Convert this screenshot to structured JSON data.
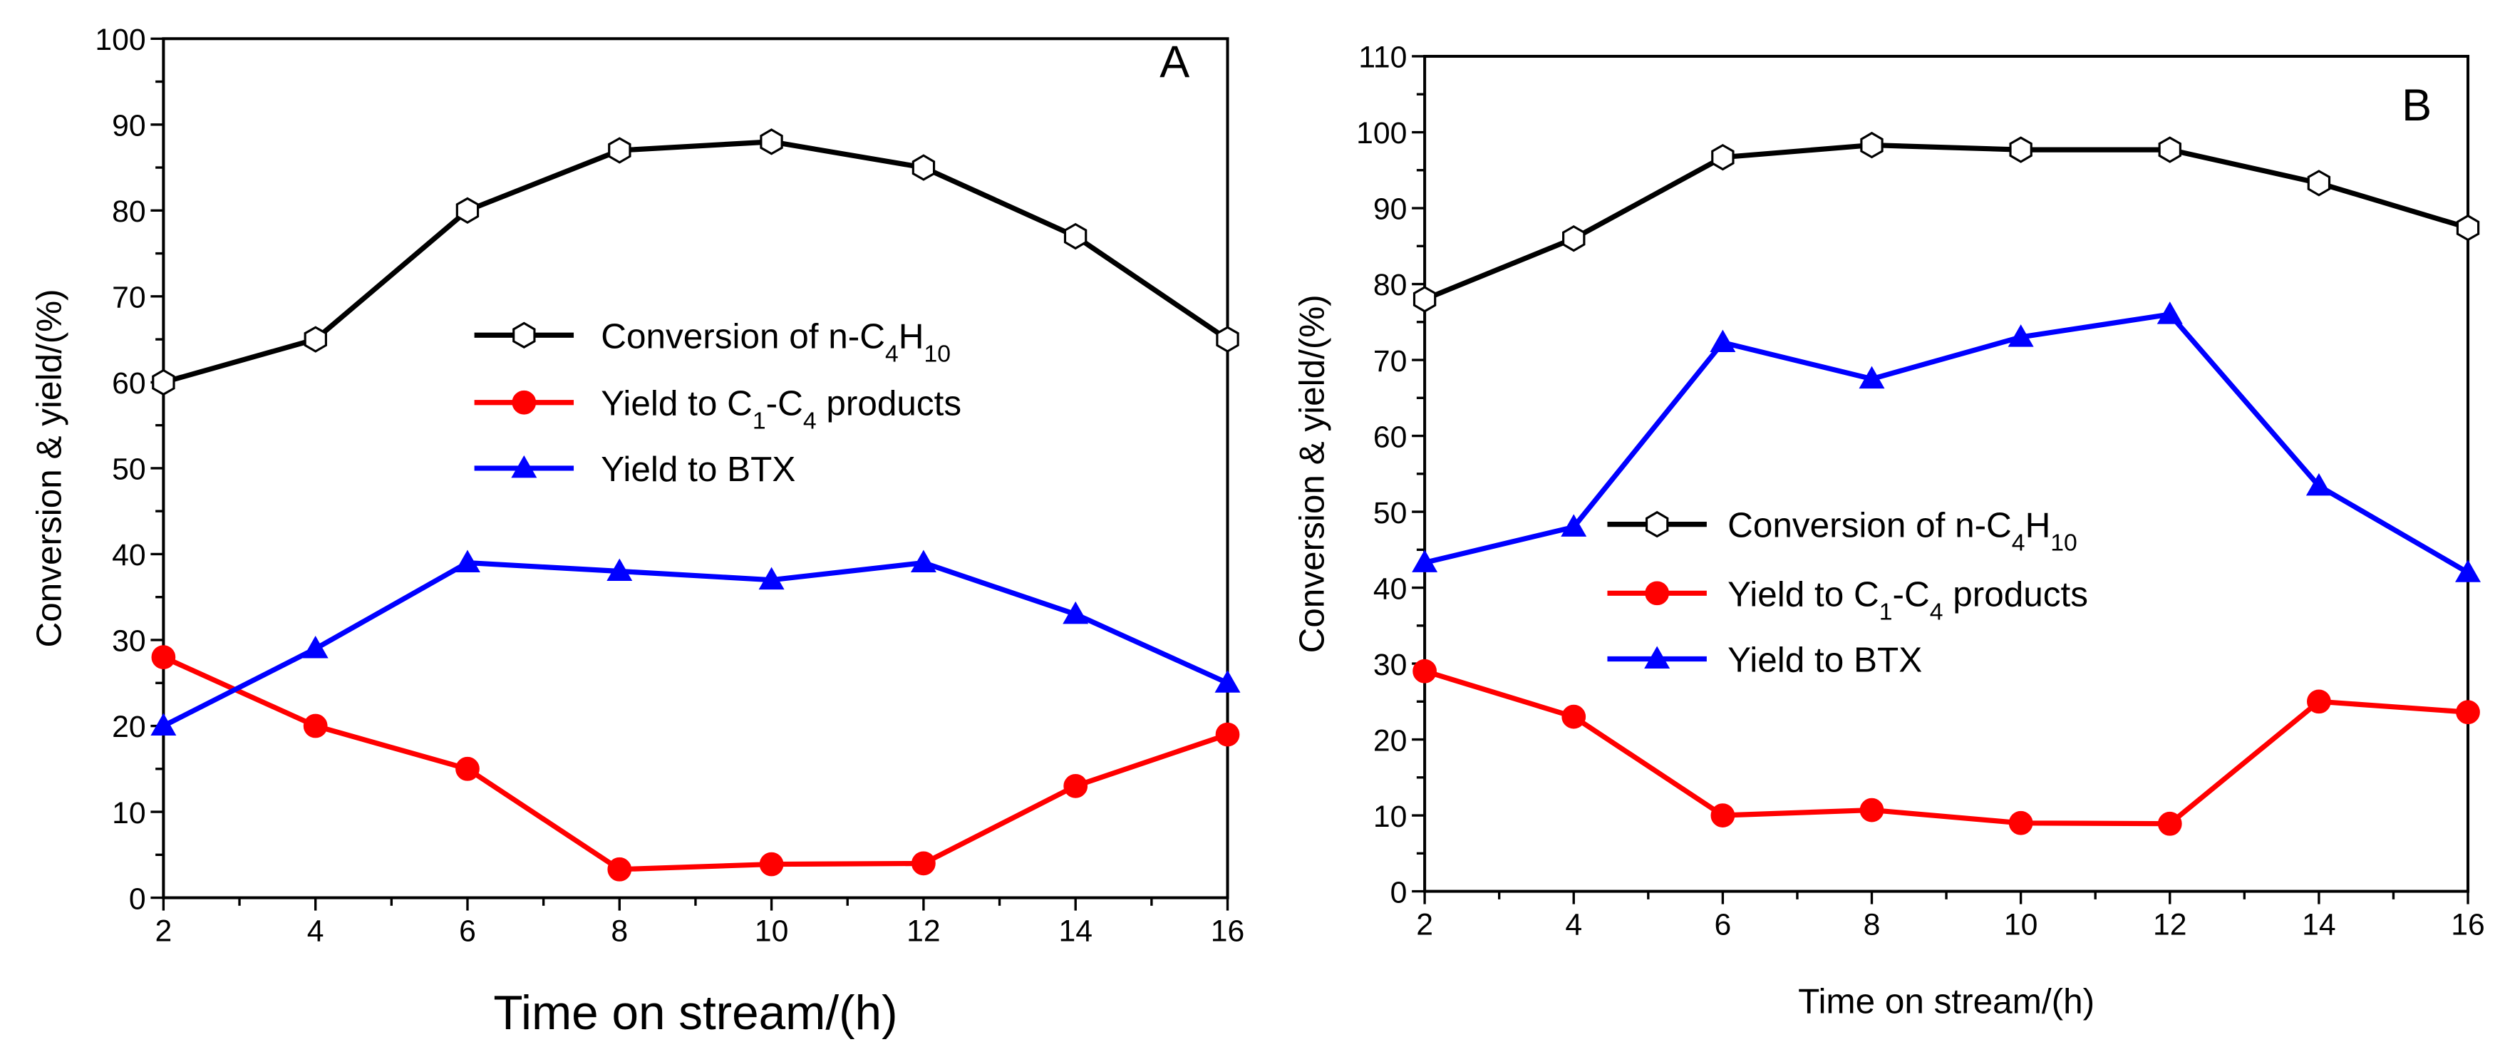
{
  "chart_data": [
    {
      "type": "line",
      "panel_label": "A",
      "xlabel": "Time on stream/(h)",
      "ylabel": "Conversion & yield/(%)",
      "xlim": [
        2,
        16
      ],
      "ylim": [
        0,
        100
      ],
      "xticks": [
        2,
        4,
        6,
        8,
        10,
        12,
        14,
        16
      ],
      "yticks": [
        0,
        10,
        20,
        30,
        40,
        50,
        60,
        70,
        80,
        90,
        100
      ],
      "grid": false,
      "legend_position": "center-right",
      "x": [
        2,
        4,
        6,
        8,
        10,
        12,
        14,
        16
      ],
      "series": [
        {
          "name": "Conversion of n-C4H10",
          "color": "#000000",
          "marker": "hexagon-open",
          "values": [
            60,
            65,
            80,
            87,
            88,
            85,
            77,
            65
          ]
        },
        {
          "name": "Yield to C1-C4 products",
          "color": "#ff0000",
          "marker": "circle",
          "values": [
            28,
            20,
            15,
            3.3,
            3.9,
            4,
            13,
            19
          ]
        },
        {
          "name": "Yield to BTX",
          "color": "#0000ff",
          "marker": "triangle",
          "values": [
            20,
            29,
            39,
            38,
            37,
            39,
            33,
            25
          ]
        }
      ]
    },
    {
      "type": "line",
      "panel_label": "B",
      "xlabel": "Time on stream/(h)",
      "ylabel": "Conversion & yield/(%)",
      "xlim": [
        2,
        16
      ],
      "ylim": [
        0,
        110
      ],
      "xticks": [
        2,
        4,
        6,
        8,
        10,
        12,
        14,
        16
      ],
      "yticks": [
        0,
        10,
        20,
        30,
        40,
        50,
        60,
        70,
        80,
        90,
        100,
        110
      ],
      "grid": false,
      "legend_position": "center",
      "x": [
        2,
        4,
        6,
        8,
        10,
        12,
        14,
        16
      ],
      "series": [
        {
          "name": "Conversion of n-C4H10",
          "color": "#000000",
          "marker": "hexagon-open",
          "values": [
            78,
            86,
            96.7,
            98.3,
            97.7,
            97.7,
            93.3,
            87.4
          ]
        },
        {
          "name": "Yield to C1-C4 products",
          "color": "#ff0000",
          "marker": "circle",
          "values": [
            29,
            23,
            10,
            10.7,
            9,
            8.9,
            25,
            23.6
          ]
        },
        {
          "name": "Yield to BTX",
          "color": "#0000ff",
          "marker": "triangle",
          "values": [
            43.3,
            48,
            72.3,
            67.5,
            73,
            76,
            53.4,
            42
          ]
        }
      ]
    }
  ]
}
